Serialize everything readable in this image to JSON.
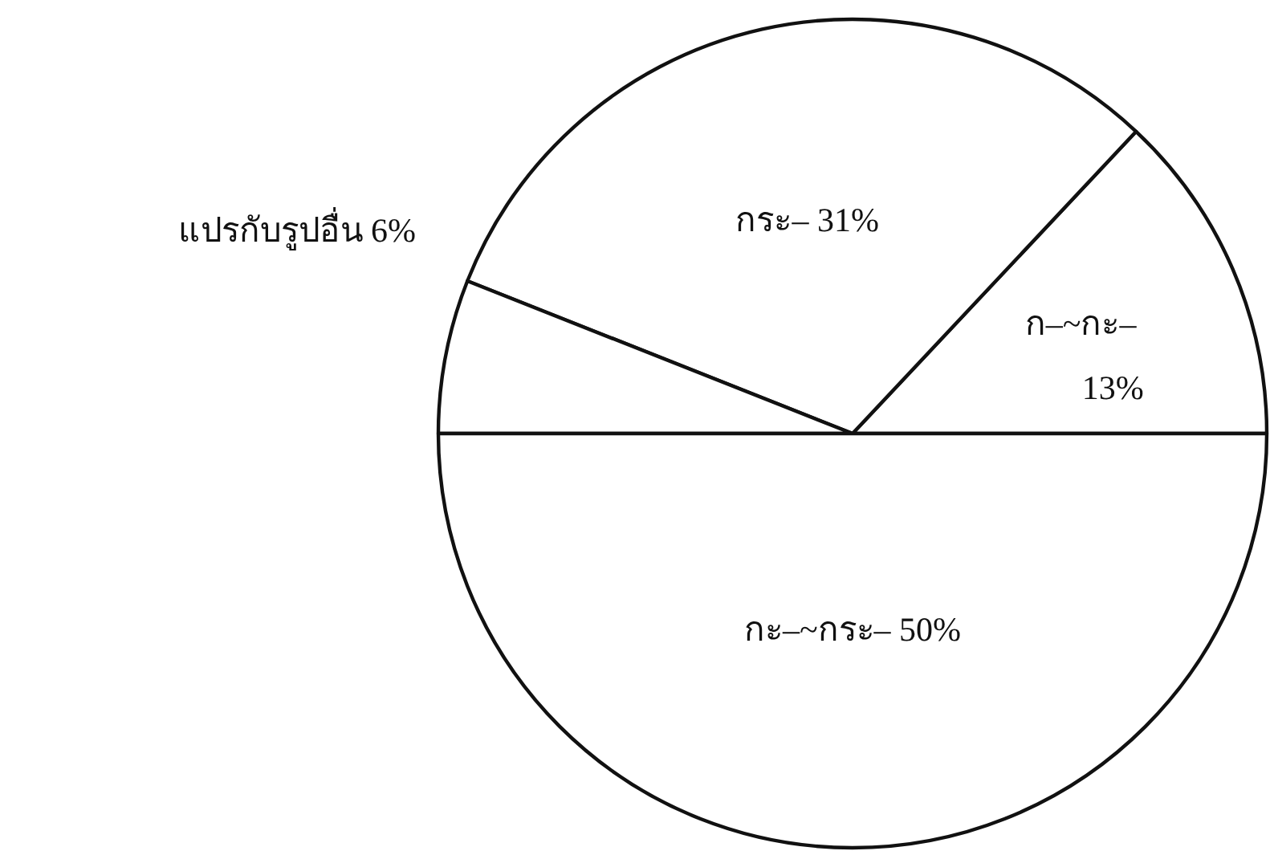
{
  "chart_data": {
    "type": "pie",
    "categories": [
      "ก–~กะ–",
      "กระ–",
      "แปรกับรูปอื่น",
      "กะ–~กระ–"
    ],
    "values": [
      13,
      31,
      6,
      50
    ],
    "value_labels": [
      "13%",
      "31%",
      "6%",
      "50%"
    ],
    "colors": [
      "#ffffff",
      "#ffffff",
      "#ffffff",
      "#ffffff"
    ]
  }
}
